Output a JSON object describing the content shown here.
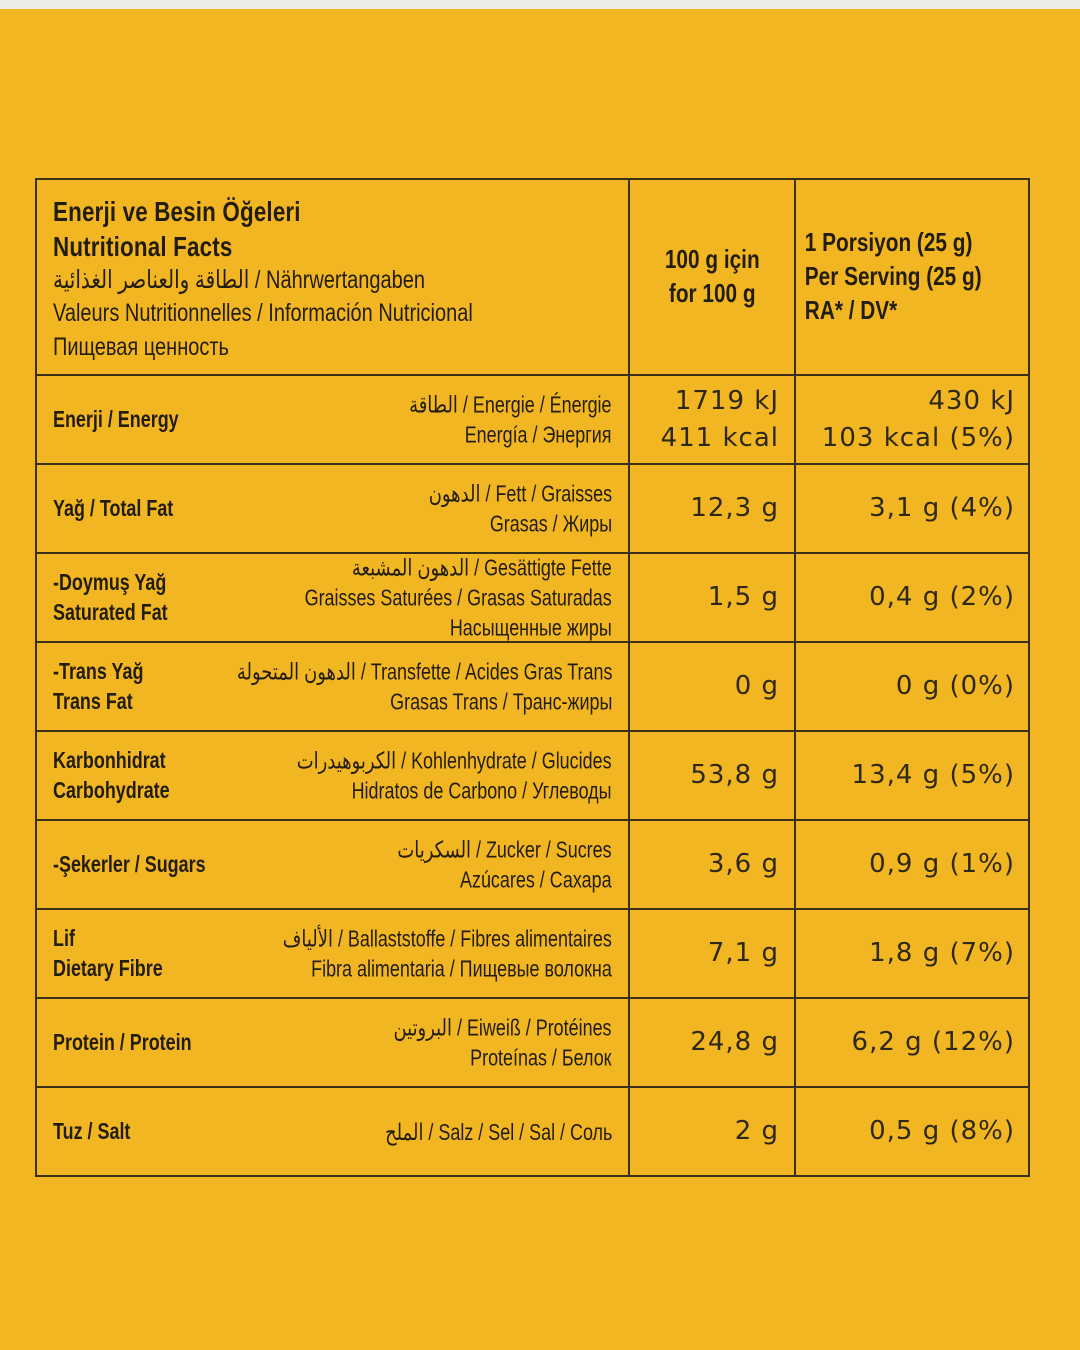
{
  "page": {
    "background_color": "#F2B622",
    "top_strip_color": "#ECEBE5",
    "text_color": "#231d10",
    "line_color": "#3a3118"
  },
  "table": {
    "header": {
      "title_bold_lines": [
        "Enerji ve Besin Öğeleri",
        "Nutritional Facts"
      ],
      "title_regular_lines": [
        "الطاقة والعناصر الغذائية / Nährwertangaben",
        "Valeurs Nutritionnelles / Información Nutricional",
        "Пищевая ценность"
      ],
      "per100_lines": [
        "100 g için",
        "for 100 g"
      ],
      "serving_lines": [
        "1 Porsiyon (25 g)",
        "Per Serving (25 g)",
        "RA* / DV*"
      ]
    },
    "rows": [
      {
        "name_lines": [
          "Enerji / Energy"
        ],
        "translation_lines": [
          "الطاقة / Energie / Énergie",
          "Energía / Энергия"
        ],
        "per100_lines": [
          "1719 kJ",
          "411 kcal"
        ],
        "serving_lines": [
          "430 kJ",
          "103 kcal (5%)"
        ]
      },
      {
        "name_lines": [
          "Yağ / Total Fat"
        ],
        "translation_lines": [
          "الدهون / Fett / Graisses",
          "Grasas / Жиры"
        ],
        "per100_lines": [
          "12,3 g"
        ],
        "serving_lines": [
          "3,1 g (4%)"
        ]
      },
      {
        "name_lines": [
          "-Doymuş Yağ",
          "Saturated Fat"
        ],
        "translation_lines": [
          "الدهون المشبعة / Gesättigte Fette",
          "Graisses Saturées / Grasas Saturadas",
          "Насыщенные жиры"
        ],
        "per100_lines": [
          "1,5 g"
        ],
        "serving_lines": [
          "0,4 g (2%)"
        ]
      },
      {
        "name_lines": [
          "-Trans Yağ",
          "Trans Fat"
        ],
        "translation_lines": [
          "الدهون المتحولة / Transfette / Acides Gras Trans",
          "Grasas Trans / Транс-жиры"
        ],
        "per100_lines": [
          "0 g"
        ],
        "serving_lines": [
          "0 g (0%)"
        ]
      },
      {
        "name_lines": [
          "Karbonhidrat",
          "Carbohydrate"
        ],
        "translation_lines": [
          "الكربوهيدرات / Kohlenhydrate / Glucides",
          "Hidratos de Carbono / Углеводы"
        ],
        "per100_lines": [
          "53,8 g"
        ],
        "serving_lines": [
          "13,4 g (5%)"
        ]
      },
      {
        "name_lines": [
          "-Şekerler / Sugars"
        ],
        "translation_lines": [
          "السكريات / Zucker / Sucres",
          "Azúcares / Сахара"
        ],
        "per100_lines": [
          "3,6 g"
        ],
        "serving_lines": [
          "0,9 g (1%)"
        ]
      },
      {
        "name_lines": [
          "Lif",
          "Dietary Fibre"
        ],
        "translation_lines": [
          "الألياف / Ballaststoffe / Fibres alimentaires",
          "Fibra alimentaria / Пищевые волокна"
        ],
        "per100_lines": [
          "7,1 g"
        ],
        "serving_lines": [
          "1,8 g (7%)"
        ]
      },
      {
        "name_lines": [
          "Protein / Protein"
        ],
        "translation_lines": [
          "البروتين / Eiweiß / Protéines",
          "Proteínas / Белок"
        ],
        "per100_lines": [
          "24,8 g"
        ],
        "serving_lines": [
          "6,2 g (12%)"
        ]
      },
      {
        "name_lines": [
          "Tuz / Salt"
        ],
        "translation_lines": [
          "الملح / Salz / Sel / Sal / Соль"
        ],
        "per100_lines": [
          "2 g"
        ],
        "serving_lines": [
          "0,5 g (8%)"
        ]
      }
    ]
  }
}
